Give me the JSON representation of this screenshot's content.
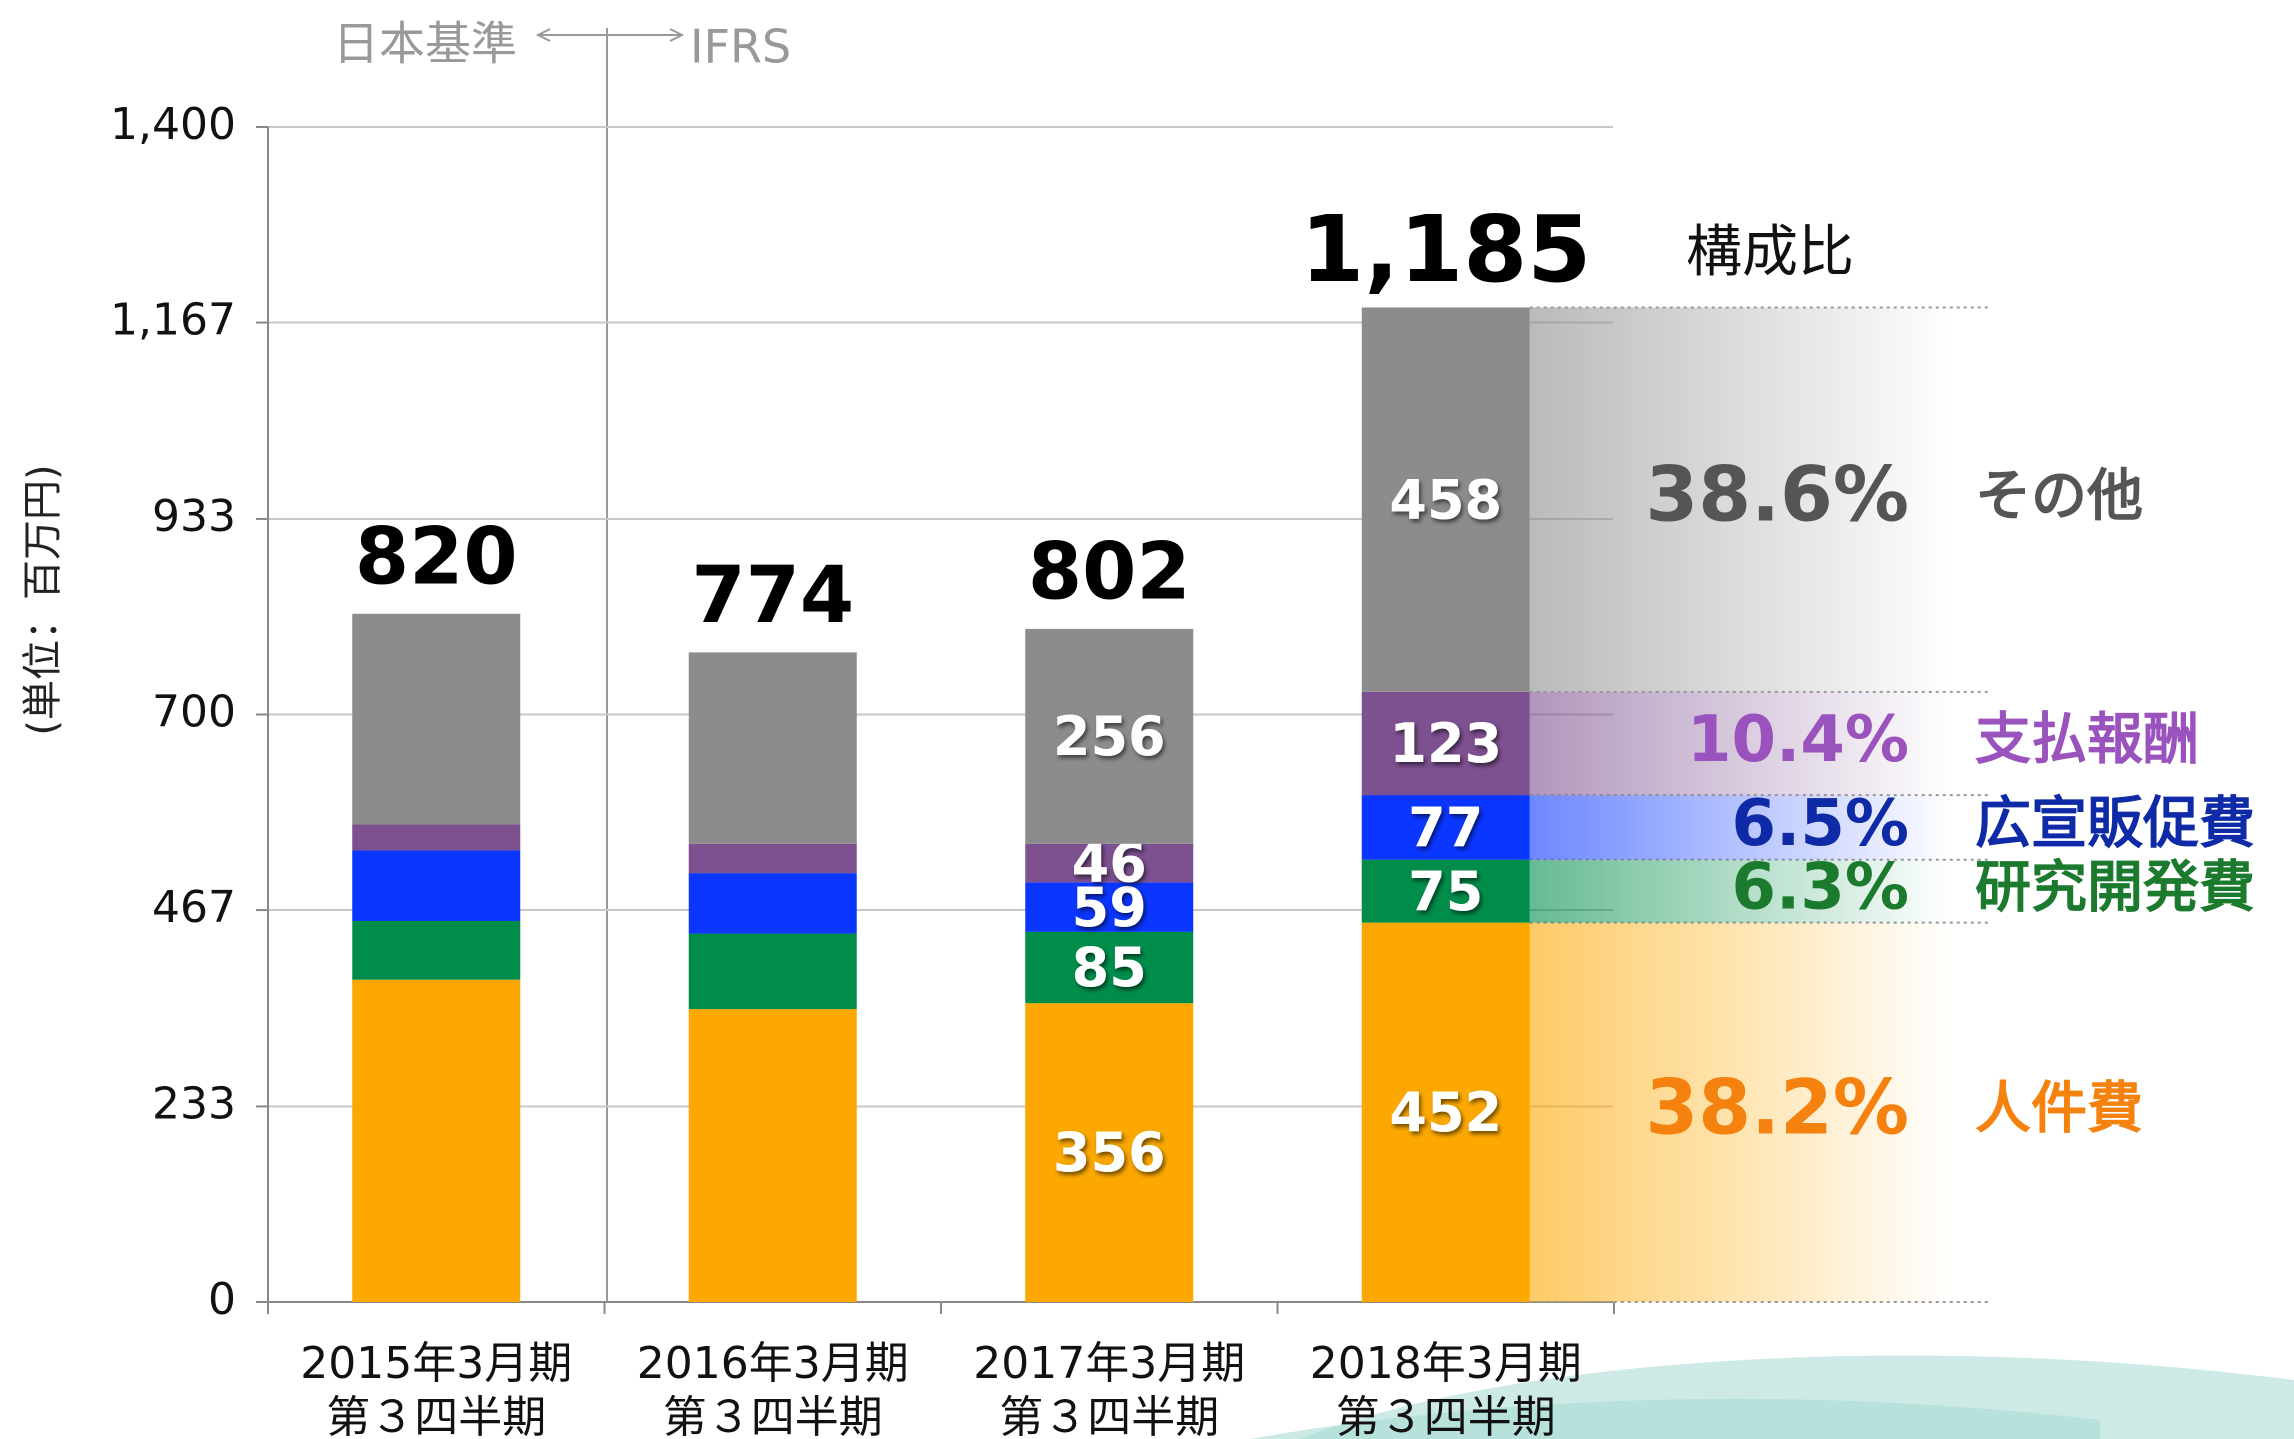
{
  "chart_data": {
    "type": "stacked-bar",
    "y_axis_label": "(単位：百万円)",
    "era_labels": [
      "日本基準",
      "IFRS"
    ],
    "categories": [
      "2015年3月期",
      "2016年3月期",
      "2017年3月期",
      "2018年3月期"
    ],
    "category_sublabels": [
      "第３四半期",
      "第３四半期",
      "第３四半期",
      "第３四半期"
    ],
    "series": [
      {
        "name": "人件費",
        "color": "#fca800",
        "text_color": "#f5820f",
        "values": [
          384,
          349,
          356,
          452
        ],
        "share": 38.2,
        "share_label": "38.2%"
      },
      {
        "name": "研究開発費",
        "color": "#008d4a",
        "text_color": "#1b7a2e",
        "values": [
          70,
          90,
          85,
          75
        ],
        "share": 6.3,
        "share_label": "6.3%"
      },
      {
        "name": "広宣販促費",
        "color": "#0a36ff",
        "text_color": "#0f2aa6",
        "values": [
          84,
          72,
          59,
          77
        ],
        "share": 6.5,
        "share_label": "6.5%"
      },
      {
        "name": "支払報酬",
        "color": "#7d5090",
        "text_color": "#9a52bd",
        "values": [
          31,
          35,
          46,
          123
        ],
        "share": 10.4,
        "share_label": "10.4%"
      },
      {
        "name": "その他",
        "color": "#8c8c8c",
        "text_color": "#555555",
        "values": [
          251,
          228,
          256,
          458
        ],
        "share": 38.6,
        "share_label": "38.6%"
      }
    ],
    "data_labels": [
      false,
      false,
      true,
      true
    ],
    "totals": [
      820,
      774,
      802,
      1185
    ],
    "total_labels": [
      "820",
      "774",
      "802",
      "1,185"
    ],
    "share_title": "構成比",
    "ylim": [
      0,
      1400
    ],
    "yticks": [
      0,
      233,
      467,
      700,
      933,
      {
        "value": 1167,
        "label": "1,167"
      },
      {
        "value": 1400,
        "label": "1,400"
      }
    ],
    "grid": true
  }
}
